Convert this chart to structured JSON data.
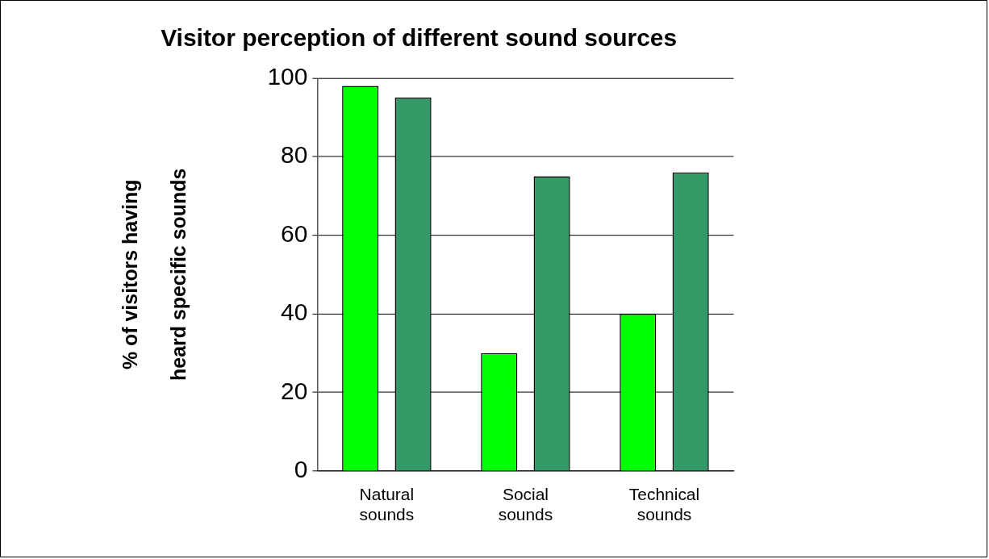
{
  "chart_data": {
    "type": "bar",
    "title": "Visitor perception of different sound sources",
    "ylabel": "% of visitors having heard specific sounds",
    "categories": [
      "Natural sounds",
      "Social sounds",
      "Technical sounds"
    ],
    "series": [
      {
        "color": "#00ff00",
        "values": [
          98,
          30,
          40
        ]
      },
      {
        "color": "#339966",
        "values": [
          95,
          75,
          76
        ]
      }
    ],
    "ylim": [
      0,
      100
    ],
    "yticks": [
      0,
      20,
      40,
      60,
      80,
      100
    ],
    "grid": "y",
    "legend": false
  }
}
